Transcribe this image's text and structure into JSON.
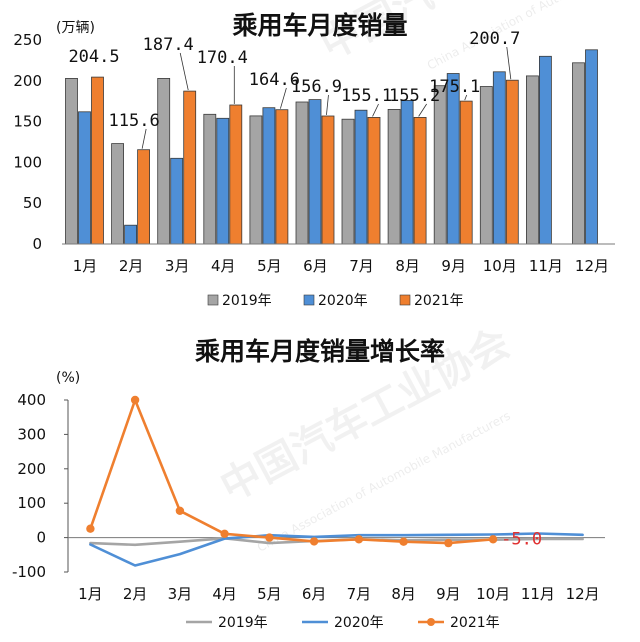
{
  "watermark": {
    "text": "中国汽车工业协会",
    "subtext": "China Association of Automobile Manufacturers"
  },
  "colors": {
    "y2019": "#a5a5a5",
    "y2020": "#4f8fd6",
    "y2021": "#ef7f2f",
    "highlight_label": "#e03030"
  },
  "chart_data": [
    {
      "type": "bar",
      "title": "乘用车月度销量",
      "unit_label": "(万辆)",
      "categories": [
        "1月",
        "2月",
        "3月",
        "4月",
        "5月",
        "6月",
        "7月",
        "8月",
        "9月",
        "10月",
        "11月",
        "12月"
      ],
      "ylim": [
        0,
        250
      ],
      "yticks": [
        0,
        50,
        100,
        150,
        200,
        250
      ],
      "grid": false,
      "legend_position": "bottom",
      "series": [
        {
          "name": "2019年",
          "color": "#a5a5a5",
          "values": [
            203,
            123,
            203,
            159,
            157,
            174,
            153,
            165,
            194,
            193,
            206,
            222
          ]
        },
        {
          "name": "2020年",
          "color": "#4f8fd6",
          "values": [
            162,
            23,
            105,
            154,
            167,
            177,
            164,
            176,
            209,
            211,
            230,
            238
          ]
        },
        {
          "name": "2021年",
          "color": "#ef7f2f",
          "values": [
            204.5,
            115.6,
            187.4,
            170.4,
            164.6,
            156.9,
            155.1,
            155.2,
            175.1,
            200.7,
            null,
            null
          ]
        }
      ],
      "data_labels": [
        {
          "category": "1月",
          "text": "204.5"
        },
        {
          "category": "2月",
          "text": "115.6"
        },
        {
          "category": "3月",
          "text": "187.4"
        },
        {
          "category": "4月",
          "text": "170.4"
        },
        {
          "category": "5月",
          "text": "164.6"
        },
        {
          "category": "6月",
          "text": "156.9"
        },
        {
          "category": "7月",
          "text": "155.1"
        },
        {
          "category": "8月",
          "text": "155.2"
        },
        {
          "category": "9月",
          "text": "175.1"
        },
        {
          "category": "10月",
          "text": "200.7"
        }
      ]
    },
    {
      "type": "line",
      "title": "乘用车月度销量增长率",
      "unit_label": "(%)",
      "categories": [
        "1月",
        "2月",
        "3月",
        "4月",
        "5月",
        "6月",
        "7月",
        "8月",
        "9月",
        "10月",
        "11月",
        "12月"
      ],
      "ylim": [
        -100,
        400
      ],
      "yticks": [
        -100,
        0,
        100,
        200,
        300,
        400
      ],
      "grid": false,
      "legend_position": "bottom",
      "series": [
        {
          "name": "2019年",
          "color": "#a5a5a5",
          "markers": false,
          "values": [
            -16,
            -21,
            -12,
            -2,
            -16,
            -10,
            -5,
            -8,
            -6,
            -6,
            -4,
            -4
          ]
        },
        {
          "name": "2020年",
          "color": "#4f8fd6",
          "markers": false,
          "values": [
            -20,
            -81,
            -48,
            -3,
            7,
            2,
            7,
            7,
            8,
            9,
            12,
            8
          ]
        },
        {
          "name": "2021年",
          "color": "#ef7f2f",
          "markers": true,
          "values": [
            26,
            400,
            78,
            11,
            0,
            -11,
            -5,
            -12,
            -16,
            -5,
            null,
            null
          ]
        }
      ],
      "annotations": [
        {
          "category": "10月",
          "text": "-5.0"
        }
      ]
    }
  ]
}
